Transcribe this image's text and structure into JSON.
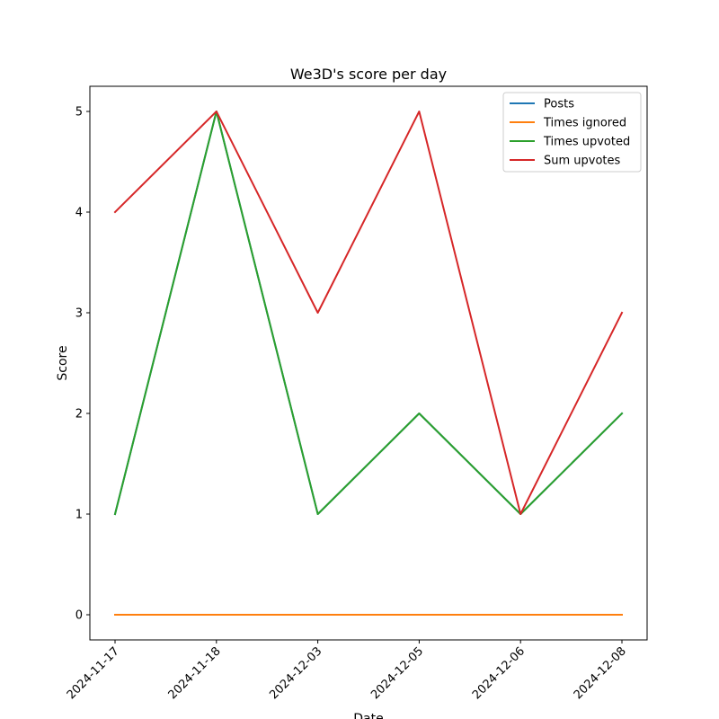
{
  "chart_data": {
    "type": "line",
    "title": "We3D's score per day",
    "xlabel": "Date",
    "ylabel": "Score",
    "categories": [
      "2024-11-17",
      "2024-11-18",
      "2024-12-03",
      "2024-12-05",
      "2024-12-06",
      "2024-12-08"
    ],
    "ylim": [
      -0.25,
      5.25
    ],
    "yticks": [
      0,
      1,
      2,
      3,
      4,
      5
    ],
    "grid": false,
    "legend_position": "top-right",
    "series": [
      {
        "name": "Posts",
        "color": "#1f77b4",
        "values": [
          1,
          5,
          1,
          2,
          1,
          2
        ]
      },
      {
        "name": "Times ignored",
        "color": "#ff7f0e",
        "values": [
          0,
          0,
          0,
          0,
          0,
          0
        ]
      },
      {
        "name": "Times upvoted",
        "color": "#2ca02c",
        "values": [
          1,
          5,
          1,
          2,
          1,
          2
        ]
      },
      {
        "name": "Sum upvotes",
        "color": "#d62728",
        "values": [
          4,
          5,
          3,
          5,
          1,
          3
        ]
      }
    ]
  }
}
